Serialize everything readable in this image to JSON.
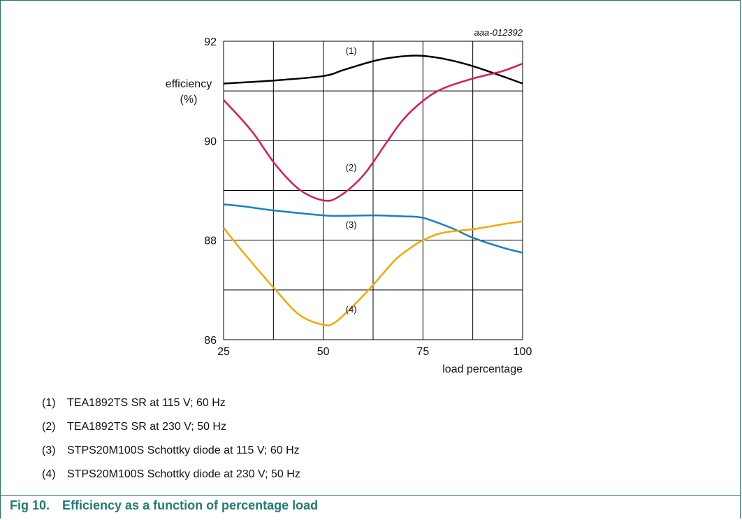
{
  "chart_data": {
    "type": "line",
    "figure_id": "aaa-012392",
    "ylabel_line1": "efficiency",
    "ylabel_line2": "(%)",
    "xlabel": "load percentage",
    "xlim": [
      25,
      100
    ],
    "ylim": [
      86,
      92
    ],
    "x_ticks": [
      25,
      50,
      75,
      100
    ],
    "y_ticks": [
      86,
      88,
      90,
      92
    ],
    "grid": true,
    "series": [
      {
        "name": "(1)",
        "color": "#000000",
        "points": [
          [
            25,
            91.15
          ],
          [
            37.5,
            91.21
          ],
          [
            50,
            91.3
          ],
          [
            55,
            91.42
          ],
          [
            62.5,
            91.6
          ],
          [
            68,
            91.68
          ],
          [
            74,
            91.71
          ],
          [
            80,
            91.65
          ],
          [
            87.5,
            91.5
          ],
          [
            100,
            91.15
          ]
        ]
      },
      {
        "name": "(2)",
        "color": "#d9195b",
        "points": [
          [
            25,
            90.82
          ],
          [
            32,
            90.2
          ],
          [
            38,
            89.52
          ],
          [
            44,
            89.02
          ],
          [
            50,
            88.8
          ],
          [
            54,
            88.88
          ],
          [
            60,
            89.3
          ],
          [
            66,
            89.98
          ],
          [
            70,
            90.42
          ],
          [
            75,
            90.8
          ],
          [
            80,
            91.05
          ],
          [
            87.5,
            91.25
          ],
          [
            95,
            91.4
          ],
          [
            100,
            91.55
          ]
        ]
      },
      {
        "name": "(3)",
        "color": "#1a7fc0",
        "points": [
          [
            25,
            88.72
          ],
          [
            30,
            88.68
          ],
          [
            37.5,
            88.6
          ],
          [
            50,
            88.5
          ],
          [
            55,
            88.49
          ],
          [
            62.5,
            88.5
          ],
          [
            70,
            88.48
          ],
          [
            75,
            88.45
          ],
          [
            82,
            88.25
          ],
          [
            87.5,
            88.05
          ],
          [
            95,
            87.85
          ],
          [
            100,
            87.75
          ]
        ]
      },
      {
        "name": "(4)",
        "color": "#f2a900",
        "points": [
          [
            25,
            88.25
          ],
          [
            30,
            87.75
          ],
          [
            37.5,
            87.05
          ],
          [
            44,
            86.5
          ],
          [
            50,
            86.3
          ],
          [
            53,
            86.35
          ],
          [
            58,
            86.72
          ],
          [
            62.5,
            87.1
          ],
          [
            68,
            87.6
          ],
          [
            72,
            87.85
          ],
          [
            75,
            88.0
          ],
          [
            80,
            88.15
          ],
          [
            87.5,
            88.22
          ],
          [
            95,
            88.32
          ],
          [
            100,
            88.38
          ]
        ]
      }
    ],
    "curve_labels": [
      {
        "text": "(1)",
        "x": 57,
        "y": 91.75
      },
      {
        "text": "(2)",
        "x": 57,
        "y": 89.4
      },
      {
        "text": "(3)",
        "x": 57,
        "y": 88.25
      },
      {
        "text": "(4)",
        "x": 57,
        "y": 86.55
      }
    ]
  },
  "legend": [
    {
      "tag": "(1)",
      "text": "TEA1892TS SR at 115 V; 60 Hz"
    },
    {
      "tag": "(2)",
      "text": "TEA1892TS SR at 230 V; 50 Hz"
    },
    {
      "tag": "(3)",
      "text": "STPS20M100S Schottky diode at 115 V; 60 Hz"
    },
    {
      "tag": "(4)",
      "text": "STPS20M100S Schottky diode at 230 V; 50 Hz"
    }
  ],
  "caption": {
    "number": "Fig 10.",
    "text": "Efficiency as a function of percentage load"
  }
}
